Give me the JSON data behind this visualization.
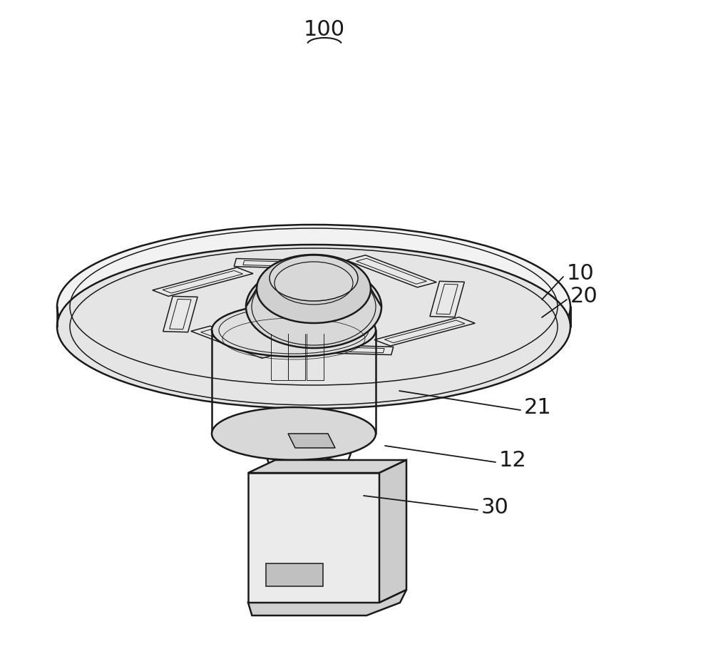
{
  "bg_color": "#ffffff",
  "line_color": "#1a1a1a",
  "fig_width": 10.0,
  "fig_height": 9.31,
  "dpi": 100,
  "label_fontsize": 22
}
